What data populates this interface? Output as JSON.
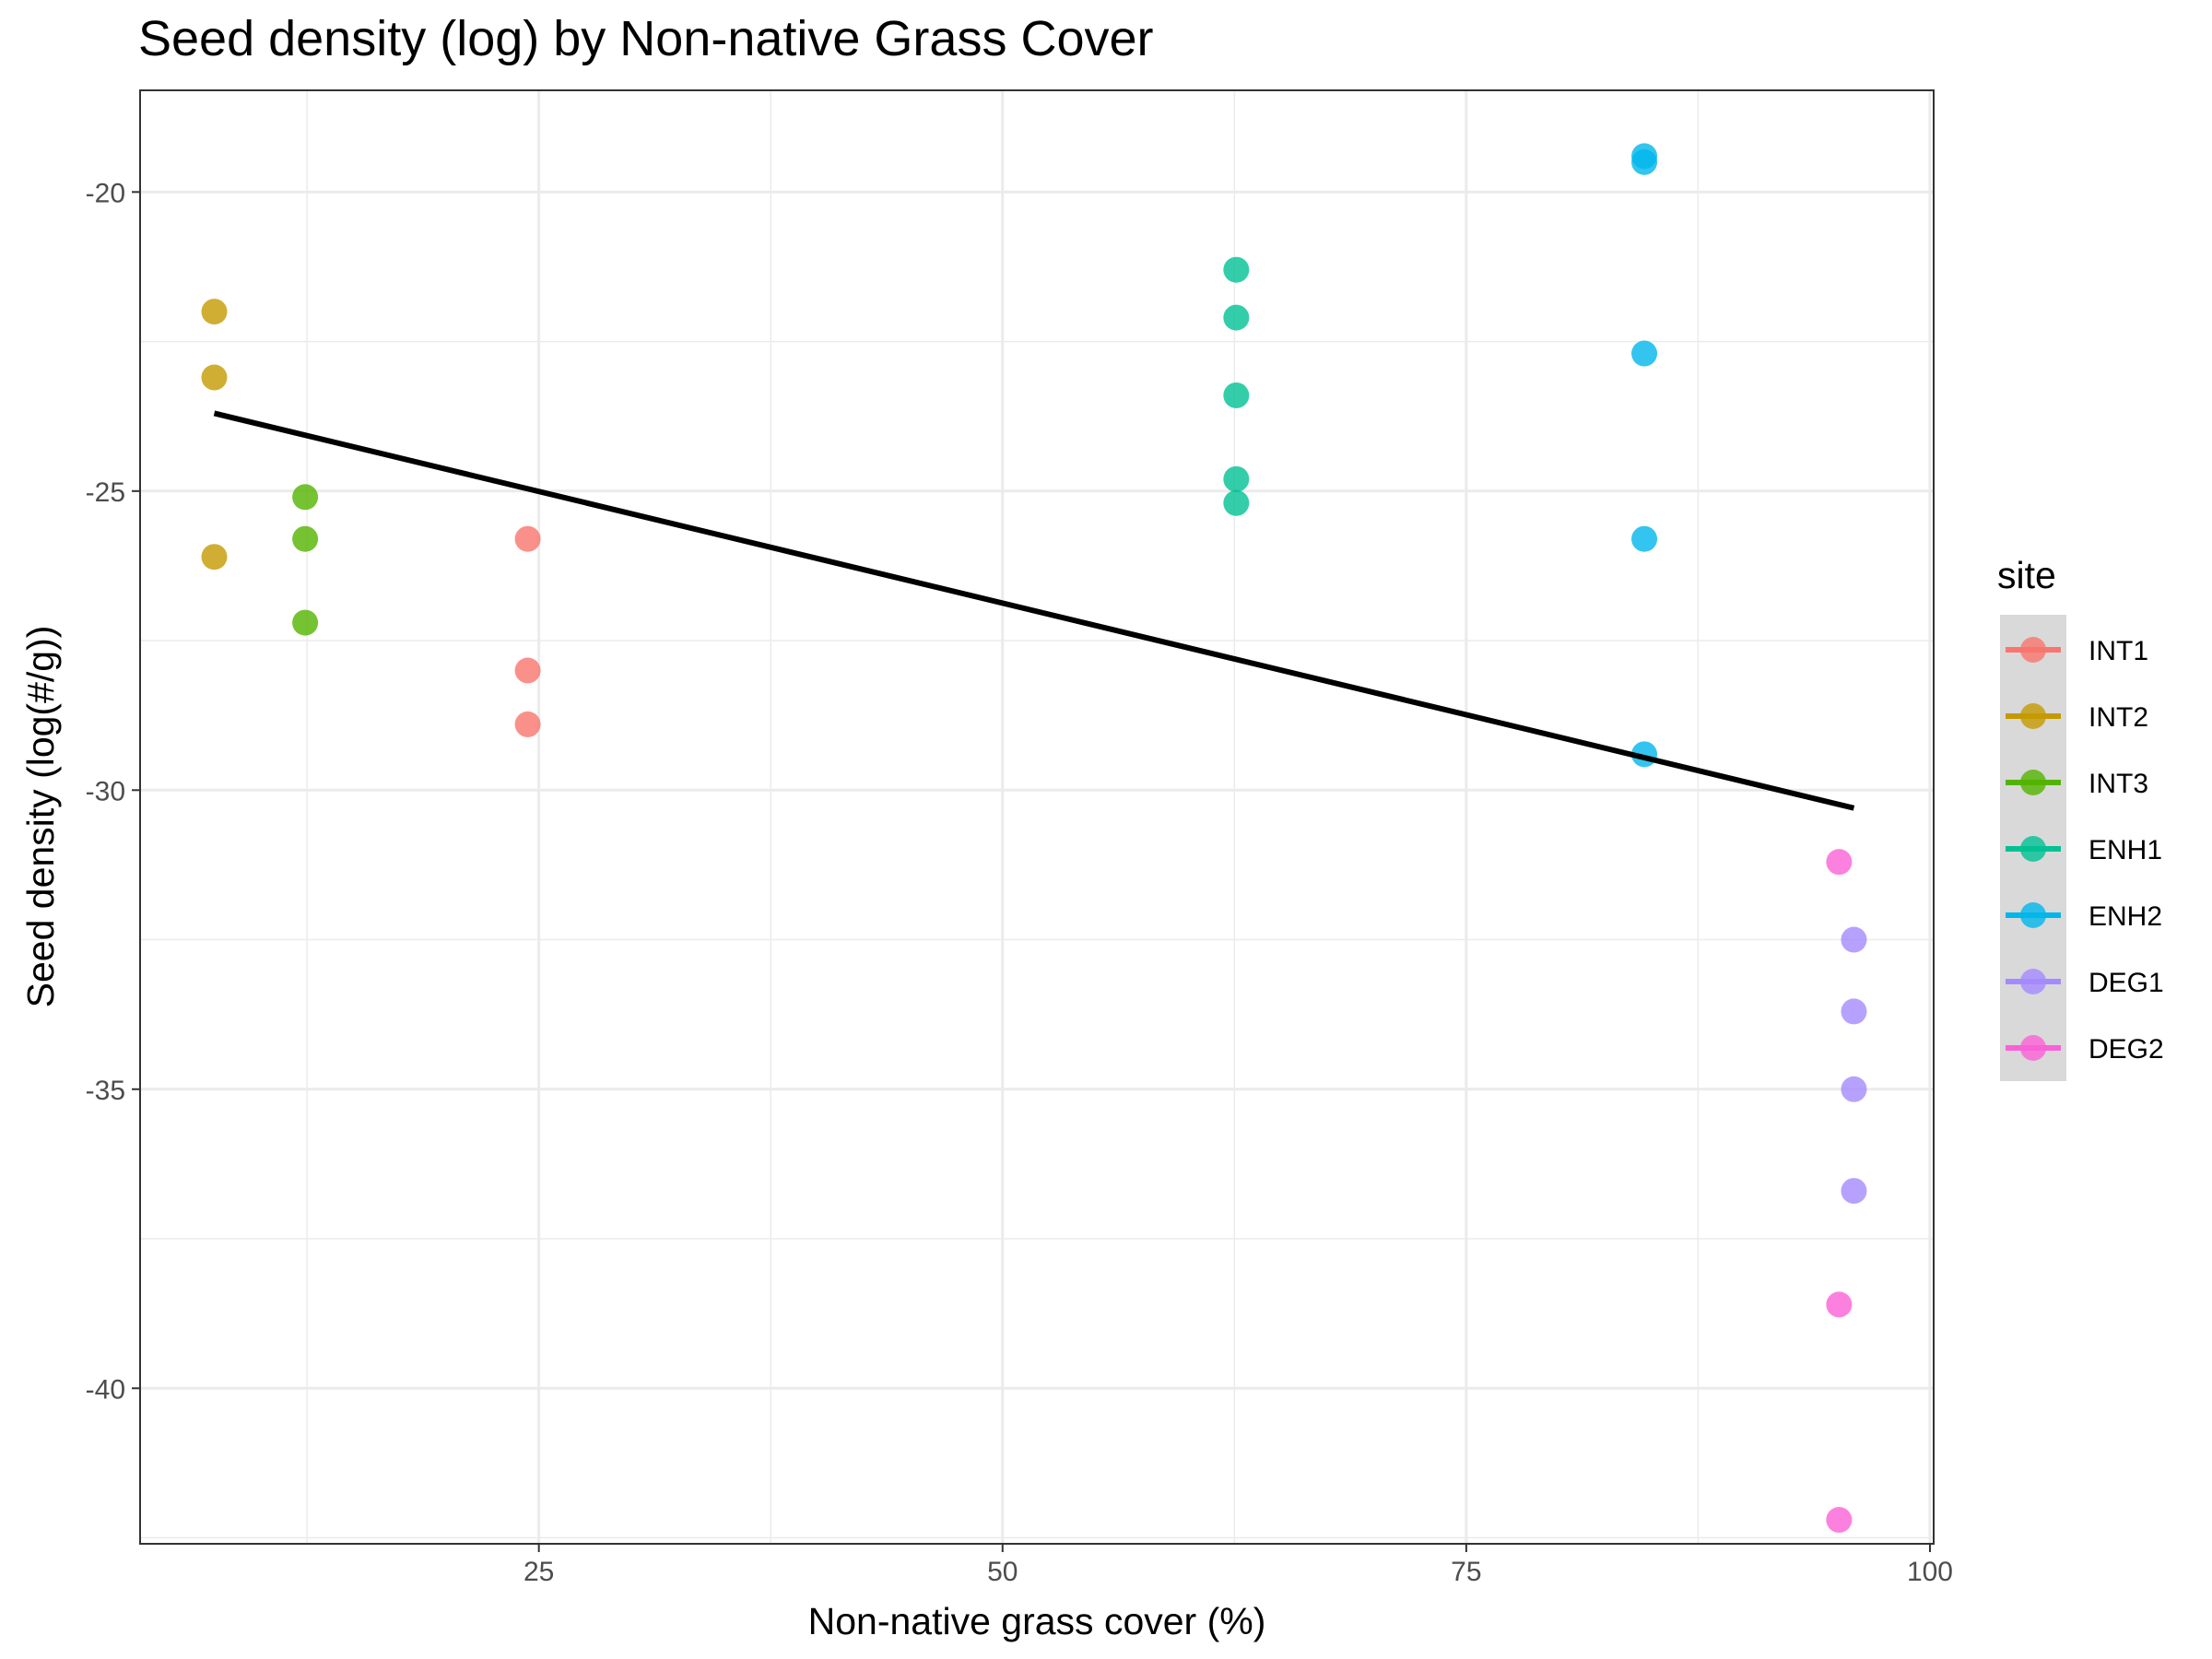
{
  "chart_data": {
    "type": "scatter",
    "title": "Seed density (log) by Non-native Grass Cover",
    "xlabel": "Non-native grass cover (%)",
    "ylabel": "Seed density (log(#/g))",
    "xlim": [
      3.5,
      100.2
    ],
    "ylim": [
      -42.6,
      -18.3
    ],
    "x_ticks": [
      25,
      50,
      75,
      100
    ],
    "y_ticks": [
      -20,
      -25,
      -30,
      -35,
      -40
    ],
    "x_tick_labels": [
      "25",
      "50",
      "75",
      "100"
    ],
    "y_tick_labels": [
      "-20",
      "-25",
      "-30",
      "-35",
      "-40"
    ],
    "grid": true,
    "legend": {
      "title": "site",
      "position": "right"
    },
    "series": [
      {
        "name": "INT1",
        "color": "#F8766D",
        "x": [
          24.4,
          24.4,
          24.4
        ],
        "y": [
          -25.8,
          -28.0,
          -28.9
        ]
      },
      {
        "name": "INT2",
        "color": "#C49A00",
        "x": [
          7.5,
          7.5,
          7.5
        ],
        "y": [
          -22.0,
          -23.1,
          -26.1
        ]
      },
      {
        "name": "INT3",
        "color": "#53B400",
        "x": [
          12.4,
          12.4,
          12.4
        ],
        "y": [
          -25.1,
          -25.8,
          -27.2
        ]
      },
      {
        "name": "ENH1",
        "color": "#00C094",
        "x": [
          62.6,
          62.6,
          62.6,
          62.6,
          62.6
        ],
        "y": [
          -21.3,
          -22.1,
          -23.4,
          -24.8,
          -25.2
        ]
      },
      {
        "name": "ENH2",
        "color": "#00B6EB",
        "x": [
          84.6,
          84.6,
          84.6,
          84.6,
          84.6
        ],
        "y": [
          -19.4,
          -19.5,
          -22.7,
          -25.8,
          -29.4
        ]
      },
      {
        "name": "DEG1",
        "color": "#A58AFF",
        "x": [
          95.9,
          95.9,
          95.9,
          95.9
        ],
        "y": [
          -32.5,
          -33.7,
          -35.0,
          -36.7
        ]
      },
      {
        "name": "DEG2",
        "color": "#FB61D7",
        "x": [
          95.1,
          95.1,
          95.1
        ],
        "y": [
          -31.2,
          -38.6,
          -42.2
        ]
      }
    ],
    "fit_line": {
      "color": "#000000",
      "x": [
        7.5,
        95.9
      ],
      "y": [
        -23.7,
        -30.3
      ]
    }
  }
}
